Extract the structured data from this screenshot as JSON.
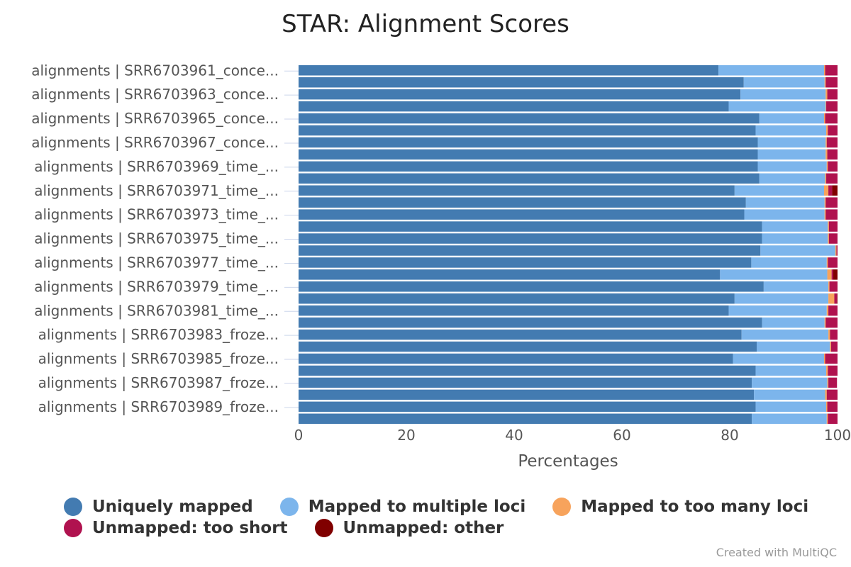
{
  "chart_data": {
    "type": "bar",
    "orientation": "horizontal",
    "stacked": true,
    "title": "STAR: Alignment Scores",
    "xlabel": "Percentages",
    "ylabel": "",
    "xlim": [
      0,
      100
    ],
    "xticks": [
      "0",
      "20",
      "40",
      "60",
      "80",
      "100"
    ],
    "grid": false,
    "legend_position": "bottom",
    "categories": [
      "alignments | SRR6703961_conce...",
      "",
      "alignments | SRR6703963_conce...",
      "",
      "alignments | SRR6703965_conce...",
      "",
      "alignments | SRR6703967_conce...",
      "",
      "alignments | SRR6703969_time_...",
      "",
      "alignments | SRR6703971_time_...",
      "",
      "alignments | SRR6703973_time_...",
      "",
      "alignments | SRR6703975_time_...",
      "",
      "alignments | SRR6703977_time_...",
      "",
      "alignments | SRR6703979_time_...",
      "",
      "alignments | SRR6703981_time_...",
      "",
      "alignments | SRR6703983_froze...",
      "",
      "alignments | SRR6703985_froze...",
      "",
      "alignments | SRR6703987_froze...",
      "",
      "alignments | SRR6703989_froze...",
      ""
    ],
    "series": [
      {
        "name": "Uniquely mapped",
        "color": "#437bb1",
        "values": [
          77.9,
          82.6,
          82.0,
          79.8,
          85.5,
          84.8,
          85.2,
          85.2,
          85.2,
          85.5,
          80.9,
          83.0,
          82.7,
          86.0,
          86.0,
          85.7,
          84.0,
          78.2,
          86.3,
          80.9,
          79.8,
          86.0,
          82.2,
          85.0,
          80.6,
          84.8,
          84.1,
          84.5,
          84.8,
          84.1
        ]
      },
      {
        "name": "Mapped to multiple loci",
        "color": "#7cb5ec",
        "values": [
          19.6,
          15.0,
          15.8,
          18.0,
          12.0,
          13.1,
          12.6,
          12.6,
          12.8,
          12.2,
          16.6,
          14.6,
          14.9,
          12.2,
          12.2,
          13.9,
          14.0,
          19.9,
          12.0,
          17.4,
          18.2,
          11.6,
          16.1,
          13.6,
          16.9,
          13.1,
          14.0,
          13.2,
          13.1,
          13.9
        ]
      },
      {
        "name": "Mapped to too many loci",
        "color": "#f7a35c",
        "values": [
          0.2,
          0.2,
          0.3,
          0.1,
          0.2,
          0.3,
          0.2,
          0.3,
          0.2,
          0.2,
          0.8,
          0.2,
          0.2,
          0.2,
          0.2,
          0.2,
          0.2,
          0.8,
          0.2,
          1.1,
          0.3,
          0.2,
          0.3,
          0.2,
          0.2,
          0.3,
          0.2,
          0.3,
          0.2,
          0.2
        ]
      },
      {
        "name": "Unmapped: too short",
        "color": "#b0124f",
        "values": [
          2.3,
          2.2,
          1.9,
          2.1,
          2.3,
          1.8,
          2.0,
          1.9,
          1.8,
          2.1,
          0.7,
          2.2,
          2.2,
          1.6,
          1.6,
          0.2,
          1.8,
          0.3,
          1.5,
          0.5,
          1.7,
          2.2,
          1.4,
          1.2,
          2.3,
          1.8,
          1.6,
          2.0,
          1.9,
          1.8
        ]
      },
      {
        "name": "Unmapped: other",
        "color": "#800000",
        "values": [
          0,
          0,
          0,
          0,
          0,
          0,
          0,
          0,
          0,
          0,
          1.0,
          0,
          0,
          0,
          0,
          0,
          0,
          0.8,
          0,
          0.1,
          0,
          0,
          0,
          0,
          0,
          0,
          0,
          0,
          0,
          0
        ]
      }
    ]
  },
  "credit": "Created with MultiQC"
}
